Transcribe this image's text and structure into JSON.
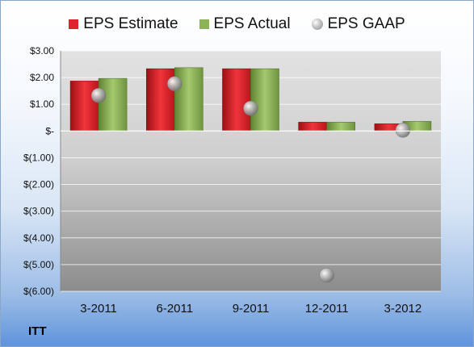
{
  "chart_data": {
    "type": "bar",
    "title": "",
    "xlabel": "",
    "ylabel": "",
    "categories": [
      "3-2011",
      "6-2011",
      "9-2011",
      "12-2011",
      "3-2012"
    ],
    "series": [
      {
        "name": "EPS Estimate",
        "kind": "bar",
        "color": "#e0222a",
        "values": [
          1.87,
          2.33,
          2.33,
          0.33,
          0.27
        ]
      },
      {
        "name": "EPS Actual",
        "kind": "bar",
        "color": "#8db357",
        "values": [
          1.97,
          2.37,
          2.33,
          0.33,
          0.36
        ]
      },
      {
        "name": "EPS GAAP",
        "kind": "point",
        "color": "#a8a8a8",
        "values": [
          1.33,
          1.77,
          0.85,
          -5.4,
          0.03
        ]
      }
    ],
    "ylim": [
      -6,
      3
    ],
    "yticks": [
      3,
      2,
      1,
      0,
      -1,
      -2,
      -3,
      -4,
      -5,
      -6
    ],
    "ytick_labels": [
      "$3.00",
      "$2.00",
      "$1.00",
      "$-",
      "$(1.00)",
      "$(2.00)",
      "$(3.00)",
      "$(4.00)",
      "$(5.00)",
      "$(6.00)"
    ],
    "legend": "top",
    "grid": true
  },
  "ticker": "ITT"
}
